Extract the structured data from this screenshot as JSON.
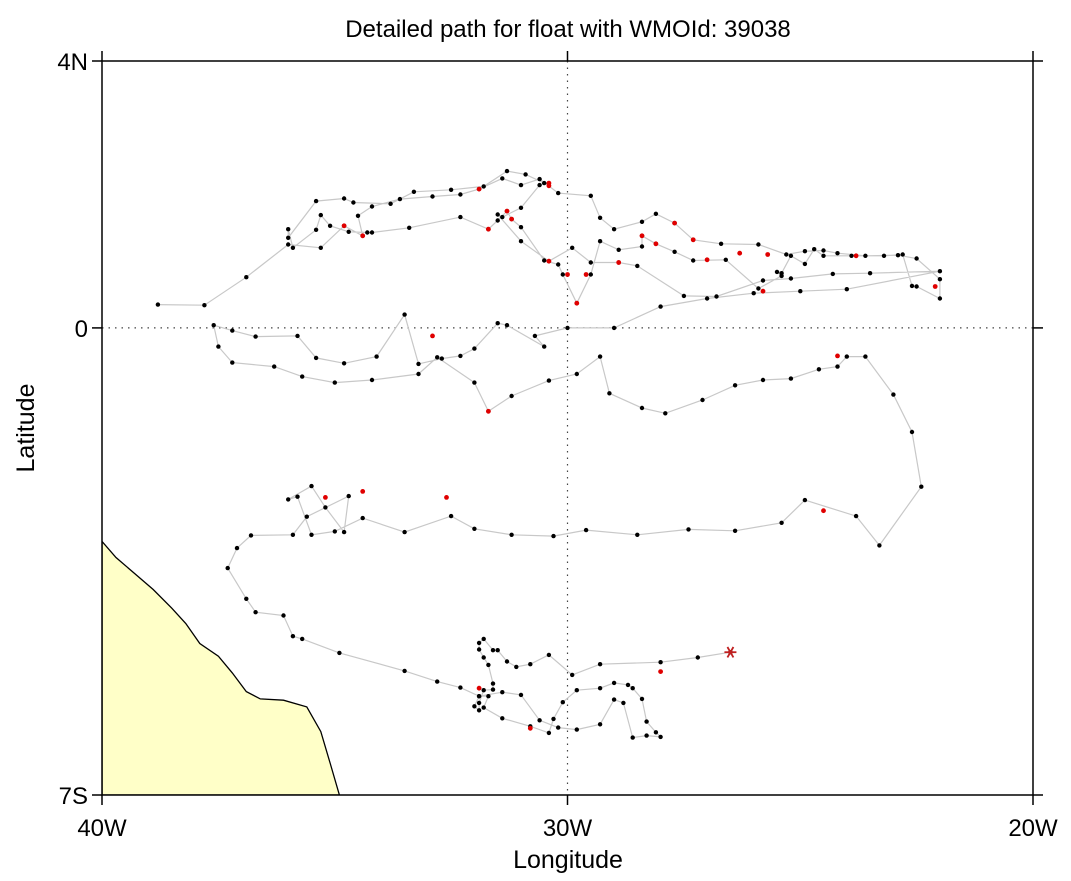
{
  "title": "Detailed path for float with WMOId: 39038",
  "colors": {
    "land": "#ffffc8",
    "path": "#c8c8c8",
    "normal_point": "#000000",
    "flagged_point": "#e00000",
    "last_position": "#c02020"
  },
  "chart_data": {
    "type": "scatter",
    "xlabel": "Longitude",
    "ylabel": "Latitude",
    "xlim": [
      -40,
      -20
    ],
    "ylim": [
      -7,
      4
    ],
    "x_ticks": [
      {
        "value": -40,
        "label": "40W"
      },
      {
        "value": -30,
        "label": "30W"
      },
      {
        "value": -20,
        "label": "20W"
      }
    ],
    "y_ticks": [
      {
        "value": 4,
        "label": "4N"
      },
      {
        "value": 0,
        "label": "0"
      },
      {
        "value": -7,
        "label": "7S"
      }
    ],
    "reference_lines": {
      "x": -30,
      "y": 0
    },
    "track": [
      [
        -38.8,
        0.35
      ],
      [
        -37.8,
        0.34
      ],
      [
        -36.9,
        0.76
      ],
      [
        -36.0,
        1.25
      ],
      [
        -35.3,
        1.2
      ],
      [
        -34.8,
        1.53
      ],
      [
        -34.4,
        1.38
      ],
      [
        -34.5,
        1.68
      ],
      [
        -34.2,
        1.82
      ],
      [
        -33.6,
        1.93
      ],
      [
        -32.9,
        1.97
      ],
      [
        -32.3,
        2.0
      ],
      [
        -31.9,
        2.08
      ],
      [
        -31.4,
        2.24
      ],
      [
        -31.0,
        2.14
      ],
      [
        -30.6,
        2.23
      ],
      [
        -30.2,
        2.02
      ],
      [
        -29.5,
        1.98
      ],
      [
        -29.3,
        1.65
      ],
      [
        -29.0,
        1.48
      ],
      [
        -28.4,
        1.59
      ],
      [
        -28.1,
        1.71
      ],
      [
        -27.7,
        1.57
      ],
      [
        -27.3,
        1.32
      ],
      [
        -26.7,
        1.26
      ],
      [
        -25.9,
        1.25
      ],
      [
        -25.3,
        1.1
      ],
      [
        -24.9,
        1.15
      ],
      [
        -24.5,
        1.16
      ],
      [
        -24.2,
        1.12
      ],
      [
        -23.6,
        1.08
      ],
      [
        -22.9,
        1.09
      ],
      [
        -22.5,
        1.04
      ],
      [
        -22.0,
        0.73
      ],
      [
        -22.0,
        0.44
      ],
      [
        -22.5,
        0.62
      ],
      [
        -22.6,
        0.63
      ],
      [
        -22.8,
        1.1
      ],
      [
        -23.2,
        1.08
      ],
      [
        -23.9,
        1.08
      ],
      [
        -24.5,
        1.08
      ],
      [
        -24.7,
        1.18
      ],
      [
        -24.9,
        0.96
      ],
      [
        -25.2,
        1.08
      ],
      [
        -25.4,
        0.82
      ],
      [
        -25.5,
        0.84
      ],
      [
        -25.4,
        0.78
      ],
      [
        -25.9,
        0.59
      ],
      [
        -26.6,
        1.02
      ],
      [
        -27.3,
        1.01
      ],
      [
        -27.7,
        1.14
      ],
      [
        -28.1,
        1.26
      ],
      [
        -28.4,
        1.38
      ],
      [
        -28.4,
        1.22
      ],
      [
        -28.9,
        1.17
      ],
      [
        -29.3,
        1.3
      ],
      [
        -29.5,
        0.8
      ],
      [
        -29.8,
        0.37
      ],
      [
        -30.1,
        0.8
      ],
      [
        -30.2,
        0.95
      ],
      [
        -30.5,
        1.01
      ],
      [
        -31.0,
        1.51
      ],
      [
        -31.2,
        1.63
      ],
      [
        -31.3,
        1.75
      ],
      [
        -31.5,
        1.61
      ],
      [
        -31.7,
        1.48
      ],
      [
        -32.3,
        1.66
      ],
      [
        -33.4,
        1.5
      ],
      [
        -34.2,
        1.43
      ],
      [
        -34.3,
        1.43
      ],
      [
        -34.7,
        1.44
      ],
      [
        -35.1,
        1.53
      ],
      [
        -35.3,
        1.69
      ],
      [
        -35.4,
        1.47
      ],
      [
        -35.9,
        1.2
      ],
      [
        -36.0,
        1.48
      ],
      [
        -36.0,
        1.35
      ],
      [
        -35.4,
        1.9
      ],
      [
        -34.8,
        1.94
      ],
      [
        -34.6,
        1.88
      ],
      [
        -33.8,
        1.86
      ],
      [
        -33.3,
        2.04
      ],
      [
        -32.5,
        2.07
      ],
      [
        -31.8,
        2.12
      ],
      [
        -31.3,
        2.35
      ],
      [
        -30.9,
        2.3
      ],
      [
        -30.5,
        2.17
      ],
      [
        -30.6,
        2.14
      ],
      [
        -31.0,
        1.8
      ],
      [
        -31.4,
        1.66
      ],
      [
        -31.5,
        1.7
      ],
      [
        -31.0,
        1.3
      ],
      [
        -30.4,
        1.0
      ],
      [
        -29.9,
        1.2
      ],
      [
        -29.5,
        0.98
      ],
      [
        -28.9,
        0.98
      ],
      [
        -28.5,
        0.93
      ],
      [
        -27.5,
        0.48
      ],
      [
        -26.8,
        0.47
      ],
      [
        -25.8,
        0.71
      ],
      [
        -25.2,
        0.74
      ],
      [
        -24.3,
        0.81
      ],
      [
        -23.5,
        0.82
      ],
      [
        -22.0,
        0.85
      ],
      [
        -24.0,
        0.58
      ],
      [
        -25.0,
        0.55
      ],
      [
        -26.0,
        0.52
      ],
      [
        -27.0,
        0.44
      ],
      [
        -28.0,
        0.32
      ],
      [
        -29.0,
        0.0
      ],
      [
        -30.0,
        0.0
      ],
      [
        -30.7,
        -0.12
      ],
      [
        -30.5,
        -0.28
      ],
      [
        -31.3,
        0.04
      ],
      [
        -31.5,
        0.07
      ],
      [
        -32.0,
        -0.31
      ],
      [
        -32.3,
        -0.42
      ],
      [
        -32.7,
        -0.46
      ],
      [
        -33.2,
        -0.54
      ],
      [
        -33.5,
        0.2
      ],
      [
        -34.1,
        -0.43
      ],
      [
        -34.8,
        -0.53
      ],
      [
        -35.4,
        -0.45
      ],
      [
        -35.8,
        -0.12
      ],
      [
        -36.7,
        -0.13
      ],
      [
        -37.2,
        -0.04
      ],
      [
        -37.6,
        0.04
      ],
      [
        -37.5,
        -0.28
      ],
      [
        -37.2,
        -0.52
      ],
      [
        -36.3,
        -0.58
      ],
      [
        -35.7,
        -0.73
      ],
      [
        -35.0,
        -0.82
      ],
      [
        -34.2,
        -0.78
      ],
      [
        -33.2,
        -0.69
      ],
      [
        -32.8,
        -0.44
      ],
      [
        -32.0,
        -0.82
      ],
      [
        -31.7,
        -1.25
      ],
      [
        -31.2,
        -1.02
      ],
      [
        -30.4,
        -0.79
      ],
      [
        -29.8,
        -0.69
      ],
      [
        -29.3,
        -0.43
      ],
      [
        -29.1,
        -0.98
      ],
      [
        -28.4,
        -1.2
      ],
      [
        -27.9,
        -1.28
      ],
      [
        -27.1,
        -1.08
      ],
      [
        -26.4,
        -0.86
      ],
      [
        -25.8,
        -0.78
      ],
      [
        -25.2,
        -0.76
      ],
      [
        -24.6,
        -0.62
      ],
      [
        -24.2,
        -0.58
      ],
      [
        -24.0,
        -0.43
      ],
      [
        -23.6,
        -0.43
      ],
      [
        -23.0,
        -1.0
      ],
      [
        -22.6,
        -1.56
      ],
      [
        -22.4,
        -2.38
      ],
      [
        -23.3,
        -3.26
      ],
      [
        -23.8,
        -2.82
      ],
      [
        -24.9,
        -2.58
      ],
      [
        -25.4,
        -2.92
      ],
      [
        -26.4,
        -3.04
      ],
      [
        -27.4,
        -3.02
      ],
      [
        -28.5,
        -3.1
      ],
      [
        -29.6,
        -3.03
      ],
      [
        -30.3,
        -3.12
      ],
      [
        -31.2,
        -3.1
      ],
      [
        -32.0,
        -3.01
      ],
      [
        -32.5,
        -2.82
      ],
      [
        -33.5,
        -3.06
      ],
      [
        -34.4,
        -2.85
      ],
      [
        -35.0,
        -3.05
      ],
      [
        -35.5,
        -3.1
      ],
      [
        -35.8,
        -2.53
      ],
      [
        -36.0,
        -2.57
      ],
      [
        -35.5,
        -2.37
      ],
      [
        -35.2,
        -2.69
      ],
      [
        -34.8,
        -3.06
      ],
      [
        -34.7,
        -2.52
      ],
      [
        -35.6,
        -2.83
      ],
      [
        -35.9,
        -3.1
      ],
      [
        -36.8,
        -3.11
      ],
      [
        -37.1,
        -3.3
      ],
      [
        -37.3,
        -3.6
      ],
      [
        -36.9,
        -4.06
      ],
      [
        -36.7,
        -4.26
      ],
      [
        -36.1,
        -4.31
      ],
      [
        -35.9,
        -4.62
      ],
      [
        -35.7,
        -4.66
      ],
      [
        -34.9,
        -4.87
      ],
      [
        -33.5,
        -5.14
      ],
      [
        -32.8,
        -5.3
      ],
      [
        -32.3,
        -5.39
      ],
      [
        -31.9,
        -5.52
      ],
      [
        -31.7,
        -5.52
      ],
      [
        -31.8,
        -5.69
      ],
      [
        -31.4,
        -5.85
      ],
      [
        -30.8,
        -5.97
      ],
      [
        -30.4,
        -6.07
      ],
      [
        -30.3,
        -5.86
      ],
      [
        -30.1,
        -5.61
      ],
      [
        -29.8,
        -5.43
      ],
      [
        -29.3,
        -5.4
      ],
      [
        -29.0,
        -5.32
      ],
      [
        -28.7,
        -5.35
      ],
      [
        -28.6,
        -5.4
      ],
      [
        -28.4,
        -5.56
      ],
      [
        -28.3,
        -5.9
      ],
      [
        -28.1,
        -6.06
      ],
      [
        -28.0,
        -6.13
      ],
      [
        -28.3,
        -6.11
      ],
      [
        -28.6,
        -6.14
      ],
      [
        -28.8,
        -5.62
      ],
      [
        -29.0,
        -5.57
      ],
      [
        -29.3,
        -5.94
      ],
      [
        -29.8,
        -6.02
      ],
      [
        -30.2,
        -5.99
      ],
      [
        -30.6,
        -5.88
      ],
      [
        -31.0,
        -5.5
      ],
      [
        -31.4,
        -5.46
      ],
      [
        -31.9,
        -5.52
      ],
      [
        -32.0,
        -5.67
      ],
      [
        -31.9,
        -5.73
      ],
      [
        -31.9,
        -5.62
      ],
      [
        -31.8,
        -5.43
      ],
      [
        -31.6,
        -5.42
      ],
      [
        -31.6,
        -5.33
      ],
      [
        -31.7,
        -5.05
      ],
      [
        -31.8,
        -4.94
      ],
      [
        -31.9,
        -4.82
      ],
      [
        -31.9,
        -4.72
      ],
      [
        -31.8,
        -4.66
      ],
      [
        -31.6,
        -4.83
      ],
      [
        -31.5,
        -4.83
      ],
      [
        -31.3,
        -5.0
      ],
      [
        -31.1,
        -5.08
      ],
      [
        -30.8,
        -5.04
      ],
      [
        -30.4,
        -4.9
      ],
      [
        -29.9,
        -5.2
      ],
      [
        -29.3,
        -5.04
      ],
      [
        -28.0,
        -5.01
      ],
      [
        -27.2,
        -4.94
      ],
      [
        -26.5,
        -4.86
      ]
    ],
    "flagged_points": [
      [
        -34.8,
        1.53
      ],
      [
        -34.4,
        1.38
      ],
      [
        -31.9,
        2.08
      ],
      [
        -31.7,
        1.48
      ],
      [
        -31.3,
        1.75
      ],
      [
        -31.2,
        1.63
      ],
      [
        -30.4,
        2.17
      ],
      [
        -30.4,
        2.13
      ],
      [
        -30.4,
        1.0
      ],
      [
        -30.0,
        0.8
      ],
      [
        -29.8,
        0.37
      ],
      [
        -29.6,
        0.8
      ],
      [
        -28.9,
        0.98
      ],
      [
        -28.4,
        1.38
      ],
      [
        -28.1,
        1.26
      ],
      [
        -27.7,
        1.57
      ],
      [
        -27.3,
        1.32
      ],
      [
        -27.0,
        1.02
      ],
      [
        -26.3,
        1.12
      ],
      [
        -25.7,
        1.1
      ],
      [
        -25.8,
        0.55
      ],
      [
        -23.8,
        1.08
      ],
      [
        -22.1,
        0.62
      ],
      [
        -24.2,
        -0.42
      ],
      [
        -32.9,
        -0.12
      ],
      [
        -31.7,
        -1.25
      ],
      [
        -34.4,
        -2.45
      ],
      [
        -35.2,
        -2.54
      ],
      [
        -32.6,
        -2.54
      ],
      [
        -24.5,
        -2.74
      ],
      [
        -28.0,
        -5.15
      ],
      [
        -31.9,
        -5.4
      ],
      [
        -30.8,
        -6.0
      ]
    ],
    "last_position": [
      -26.5,
      -4.86
    ],
    "land": [
      [
        -40,
        -3.2
      ],
      [
        -39.7,
        -3.44
      ],
      [
        -39.3,
        -3.68
      ],
      [
        -38.9,
        -3.92
      ],
      [
        -38.5,
        -4.2
      ],
      [
        -38.2,
        -4.43
      ],
      [
        -37.9,
        -4.73
      ],
      [
        -37.5,
        -4.92
      ],
      [
        -37.2,
        -5.17
      ],
      [
        -36.9,
        -5.45
      ],
      [
        -36.6,
        -5.56
      ],
      [
        -36.1,
        -5.58
      ],
      [
        -35.6,
        -5.68
      ],
      [
        -35.3,
        -6.05
      ],
      [
        -35.1,
        -6.52
      ],
      [
        -34.9,
        -7.0
      ],
      [
        -40,
        -7.0
      ]
    ]
  }
}
